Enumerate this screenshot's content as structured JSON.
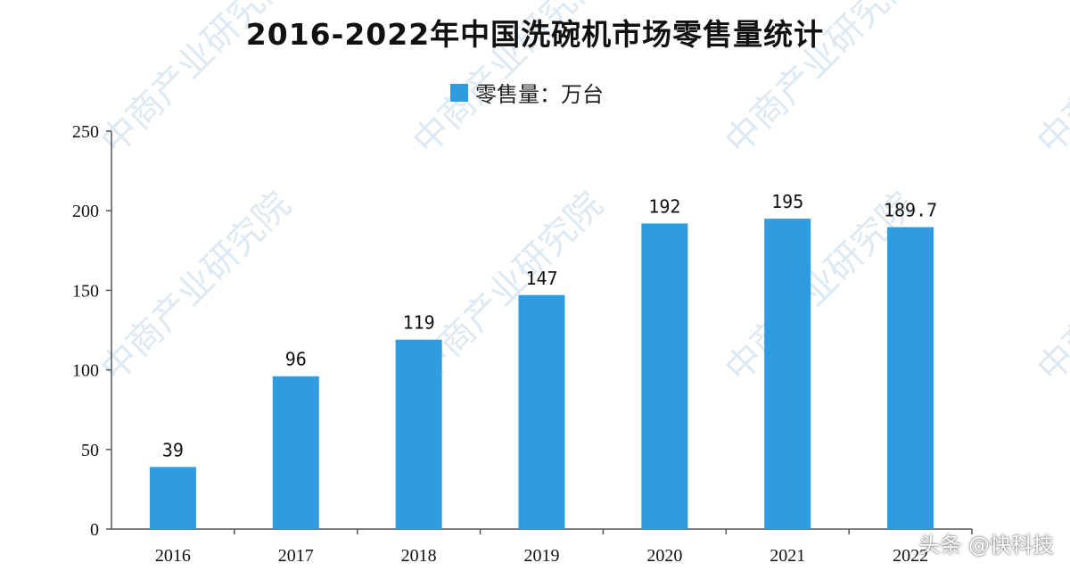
{
  "colors": {
    "bar": "#2f9be0",
    "axis": "#555555",
    "text": "#111111",
    "watermark": "#dde9f3"
  },
  "watermark": {
    "text": "中商产业研究院",
    "tag": "头条 @快科技"
  },
  "chart_data": {
    "type": "bar",
    "title": "2016-2022年中国洗碗机市场零售量统计",
    "legend": "零售量：万台",
    "legend_position": "top-center",
    "categories": [
      "2016",
      "2017",
      "2018",
      "2019",
      "2020",
      "2021",
      "2022"
    ],
    "series": [
      {
        "name": "零售量：万台",
        "values": [
          39,
          96,
          119,
          147,
          192,
          195,
          189.7
        ]
      }
    ],
    "data_labels": [
      "39",
      "96",
      "119",
      "147",
      "192",
      "195",
      "189.7"
    ],
    "yticks": [
      "0",
      "50",
      "100",
      "150",
      "200",
      "250"
    ],
    "ylim": [
      0,
      250
    ],
    "grid": false,
    "xlabel": "",
    "ylabel": ""
  }
}
